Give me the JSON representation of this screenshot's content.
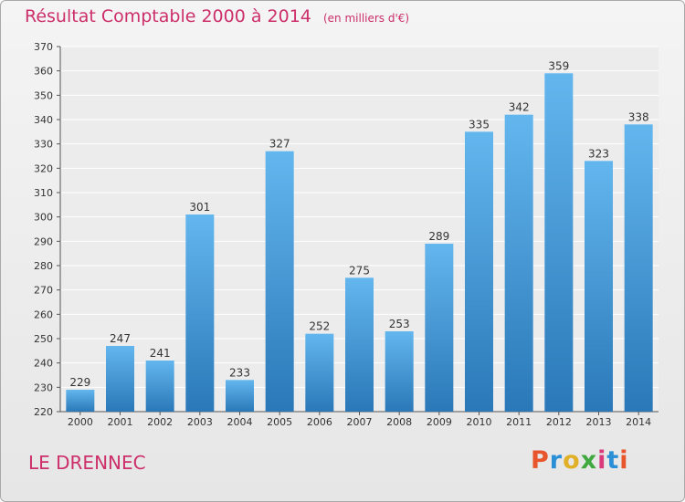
{
  "header": {
    "title": "Résultat Comptable 2000 à 2014",
    "unit": "(en milliers d'€)"
  },
  "footer": {
    "commune": "LE DRENNEC",
    "logo": "Proxiti",
    "logo_colors": [
      "#e8542c",
      "#2a8fd6",
      "#e0b026",
      "#3fa83e",
      "#d93a7c",
      "#2a8fd6",
      "#e8542c"
    ]
  },
  "chart_data": {
    "type": "bar",
    "title": "Résultat Comptable 2000 à 2014",
    "categories": [
      "2000",
      "2001",
      "2002",
      "2003",
      "2004",
      "2005",
      "2006",
      "2007",
      "2008",
      "2009",
      "2010",
      "2011",
      "2012",
      "2013",
      "2014"
    ],
    "values": [
      229,
      247,
      241,
      301,
      233,
      327,
      252,
      275,
      253,
      289,
      335,
      342,
      359,
      323,
      338
    ],
    "ylim": [
      220,
      370
    ],
    "yticks": [
      220,
      230,
      240,
      250,
      260,
      270,
      280,
      290,
      300,
      310,
      320,
      330,
      340,
      350,
      360,
      370
    ],
    "grid": true,
    "bar_color_light": "#63b6ee",
    "bar_color_dark": "#2a78b8",
    "text_color": "#333333"
  }
}
